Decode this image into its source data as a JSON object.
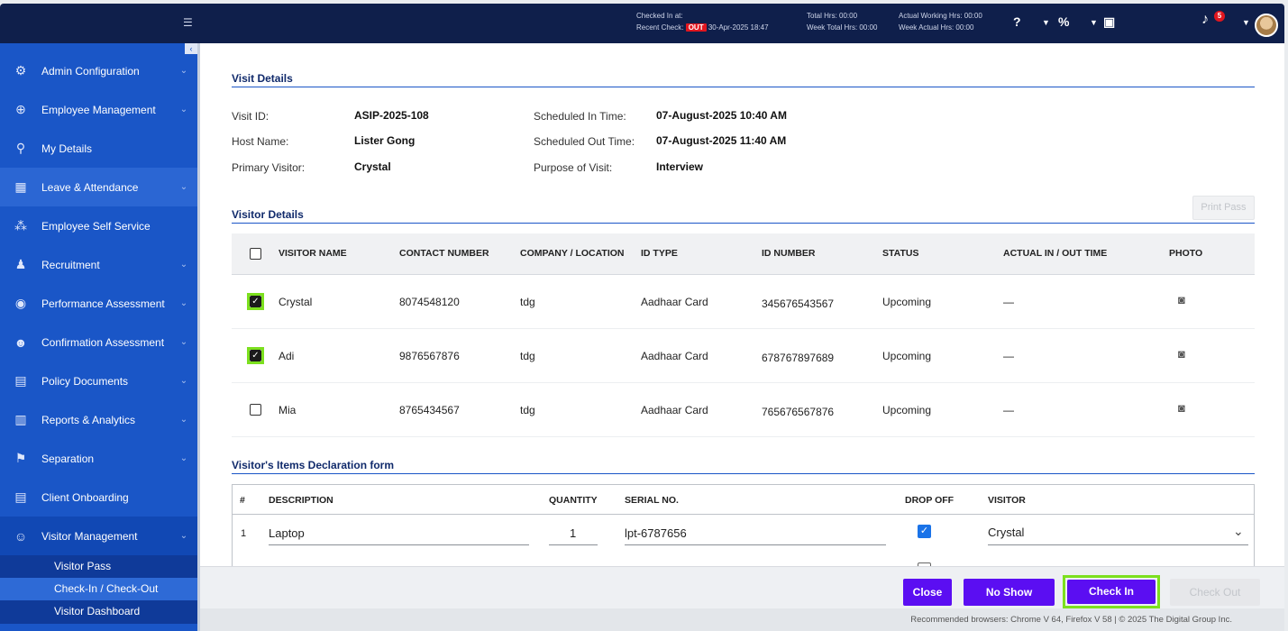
{
  "topbar": {
    "checked_in_label": "Checked In at:",
    "recent_check_label": "Recent Check:",
    "recent_check_status": "OUT",
    "recent_check_time": "30-Apr-2025 18:47",
    "total_hrs": "Total Hrs: 00:00",
    "week_total_hrs": "Week Total Hrs: 00:00",
    "actual_working_hrs": "Actual Working Hrs: 00:00",
    "week_actual_hrs": "Week Actual Hrs: 00:00",
    "notification_count": "5"
  },
  "sidebar": {
    "items": [
      {
        "label": "Admin Configuration",
        "icon": "⚙",
        "chev": "⌄"
      },
      {
        "label": "Employee Management",
        "icon": "⊕",
        "chev": "⌄"
      },
      {
        "label": "My Details",
        "icon": "⚲",
        "chev": ""
      },
      {
        "label": "Leave & Attendance",
        "icon": "▦",
        "chev": "⌄"
      },
      {
        "label": "Employee Self Service",
        "icon": "⁂",
        "chev": ""
      },
      {
        "label": "Recruitment",
        "icon": "♟",
        "chev": "⌄"
      },
      {
        "label": "Performance Assessment",
        "icon": "◉",
        "chev": "⌄"
      },
      {
        "label": "Confirmation Assessment",
        "icon": "☻",
        "chev": "⌄"
      },
      {
        "label": "Policy Documents",
        "icon": "▤",
        "chev": "⌄"
      },
      {
        "label": "Reports & Analytics",
        "icon": "▥",
        "chev": "⌄"
      },
      {
        "label": "Separation",
        "icon": "⚑",
        "chev": "⌄"
      },
      {
        "label": "Client Onboarding",
        "icon": "▤",
        "chev": ""
      },
      {
        "label": "Visitor Management",
        "icon": "☺",
        "chev": "⌄"
      }
    ],
    "sub_items": [
      {
        "label": "Visitor Pass"
      },
      {
        "label": "Check-In / Check-Out"
      },
      {
        "label": "Visitor Dashboard"
      }
    ]
  },
  "visit_details": {
    "title": "Visit Details",
    "visit_id_label": "Visit ID:",
    "visit_id": "ASIP-2025-108",
    "host_name_label": "Host Name:",
    "host_name": "Lister Gong",
    "primary_visitor_label": "Primary Visitor:",
    "primary_visitor": "Crystal",
    "scheduled_in_label": "Scheduled In Time:",
    "scheduled_in": "07-August-2025 10:40 AM",
    "scheduled_out_label": "Scheduled Out Time:",
    "scheduled_out": "07-August-2025 11:40 AM",
    "purpose_label": "Purpose of Visit:",
    "purpose": "Interview"
  },
  "visitor_details": {
    "title": "Visitor Details",
    "print_pass": "Print Pass",
    "headers": [
      "VISITOR NAME",
      "CONTACT NUMBER",
      "COMPANY / LOCATION",
      "ID TYPE",
      "ID NUMBER",
      "STATUS",
      "ACTUAL IN / OUT TIME",
      "PHOTO"
    ],
    "rows": [
      {
        "name": "Crystal",
        "contact": "8074548120",
        "company": "tdg",
        "id_type": "Aadhaar Card",
        "id_number": "345676543567",
        "status": "Upcoming",
        "in_out": "—",
        "checked": true
      },
      {
        "name": "Adi",
        "contact": "9876567876",
        "company": "tdg",
        "id_type": "Aadhaar Card",
        "id_number": "678767897689",
        "status": "Upcoming",
        "in_out": "—",
        "checked": true
      },
      {
        "name": "Mia",
        "contact": "8765434567",
        "company": "tdg",
        "id_type": "Aadhaar Card",
        "id_number": "765676567876",
        "status": "Upcoming",
        "in_out": "—",
        "checked": false
      }
    ]
  },
  "items_form": {
    "title": "Visitor's Items Declaration form",
    "headers": [
      "#",
      "DESCRIPTION",
      "QUANTITY",
      "SERIAL NO.",
      "DROP OFF",
      "VISITOR"
    ],
    "rows": [
      {
        "num": "1",
        "description": "Laptop",
        "quantity": "1",
        "serial": "lpt-6787656",
        "drop_off": true,
        "visitor": "Crystal"
      }
    ]
  },
  "footer": {
    "close": "Close",
    "no_show": "No Show",
    "check_in": "Check In",
    "check_out": "Check Out",
    "copyright": "Recommended browsers: Chrome V 64, Firefox V 58  |  © 2025 The Digital Group Inc."
  },
  "colors": {
    "accent": "#5b0ef2",
    "sidebar": "#1a56c7",
    "topbar": "#0f1f4b",
    "highlight": "#7ce01e"
  }
}
